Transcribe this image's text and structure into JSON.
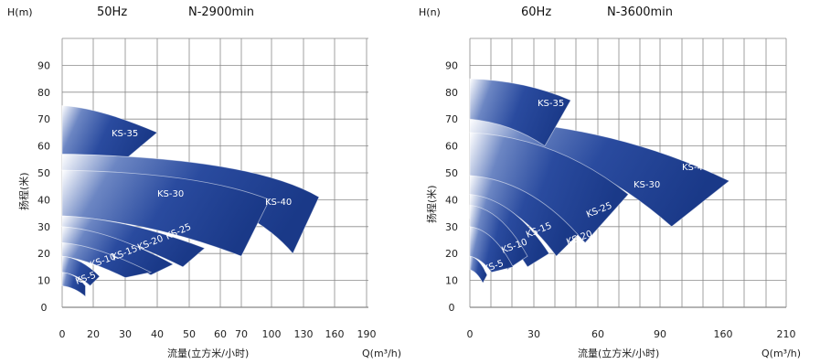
{
  "chart_data": [
    {
      "type": "area",
      "y_unit_label": "H(m)",
      "frequency": "50Hz",
      "speed": "N-2900min",
      "ylabel": "扬程(米)",
      "xlabel": "流量(立方米/小时)",
      "x_unit_label": "Q(m³/h)",
      "ylim": [
        0,
        100
      ],
      "y_ticks": [
        0,
        10,
        20,
        30,
        40,
        50,
        60,
        70,
        80,
        90
      ],
      "x_tick_labels": [
        "0",
        "20",
        "30",
        "40",
        "50",
        "60",
        "70",
        "100",
        "130",
        "160",
        "190"
      ],
      "grid": true,
      "series": [
        {
          "name": "KS-5",
          "color": "#1d3f95",
          "top": [
            [
              0,
              13
            ],
            [
              15,
              8
            ]
          ],
          "bottom": [
            [
              0,
              8
            ],
            [
              15,
              4
            ]
          ]
        },
        {
          "name": "KS-10",
          "color": "#1d3f95",
          "top": [
            [
              0,
              19
            ],
            [
              22,
              11.5
            ]
          ],
          "bottom": [
            [
              0,
              13
            ],
            [
              18,
              8
            ]
          ]
        },
        {
          "name": "KS-15",
          "color": "#1d3f95",
          "top": [
            [
              0,
              24
            ],
            [
              38,
              13
            ]
          ],
          "bottom": [
            [
              0,
              19
            ],
            [
              30,
              11
            ]
          ]
        },
        {
          "name": "KS-20",
          "color": "#1d3f95",
          "top": [
            [
              0,
              30
            ],
            [
              45,
              16
            ]
          ],
          "bottom": [
            [
              0,
              24
            ],
            [
              38,
              12
            ]
          ]
        },
        {
          "name": "KS-25",
          "color": "#1d3f95",
          "top": [
            [
              0,
              34
            ],
            [
              55,
              22
            ]
          ],
          "bottom": [
            [
              0,
              30
            ],
            [
              48,
              15
            ]
          ]
        },
        {
          "name": "KS-30",
          "color": "#1d3f95",
          "top": [
            [
              0,
              51
            ],
            [
              98,
              40
            ]
          ],
          "bottom": [
            [
              0,
              34
            ],
            [
              70,
              19
            ]
          ]
        },
        {
          "name": "KS-40",
          "color": "#1d3f95",
          "top": [
            [
              0,
              57
            ],
            [
              145,
              41
            ]
          ],
          "bottom": [
            [
              0,
              51
            ],
            [
              120,
              20
            ]
          ]
        },
        {
          "name": "KS-35",
          "color": "#1d3f95",
          "top": [
            [
              0,
              75
            ],
            [
              40,
              65
            ]
          ],
          "bottom": [
            [
              0,
              57
            ],
            [
              31,
              56
            ]
          ]
        }
      ]
    },
    {
      "type": "area",
      "y_unit_label": "H(n)",
      "frequency": "60Hz",
      "speed": "N-3600min",
      "ylabel": "扬程(米)",
      "xlabel": "流量(立方米/小时)",
      "x_unit_label": "Q(m³/h)",
      "ylim": [
        0,
        100
      ],
      "y_ticks": [
        0,
        10,
        20,
        30,
        40,
        50,
        60,
        70,
        80,
        90
      ],
      "x_tick_labels": [
        "0",
        "30",
        "60",
        "90",
        "160",
        "210"
      ],
      "grid": true,
      "series": [
        {
          "name": "KS-5",
          "color": "#1d3f95",
          "top": [
            [
              0,
              19
            ],
            [
              12,
              12
            ]
          ],
          "bottom": [
            [
              0,
              14
            ],
            [
              9,
              9
            ]
          ]
        },
        {
          "name": "KS-10",
          "color": "#1d3f95",
          "top": [
            [
              0,
              30
            ],
            [
              30,
              15
            ]
          ],
          "bottom": [
            [
              0,
              19
            ],
            [
              15,
              13
            ]
          ]
        },
        {
          "name": "KS-15",
          "color": "#1d3f95",
          "top": [
            [
              0,
              38
            ],
            [
              40,
              19
            ]
          ],
          "bottom": [
            [
              0,
              30
            ],
            [
              26,
              14
            ]
          ]
        },
        {
          "name": "KS-20",
          "color": "#1d3f95",
          "top": [
            [
              0,
              42
            ],
            [
              55,
              20
            ]
          ],
          "bottom": [
            [
              0,
              33
            ],
            [
              40,
              15
            ]
          ]
        },
        {
          "name": "KS-25",
          "color": "#1d3f95",
          "top": [
            [
              0,
              49
            ],
            [
              75,
              27
            ]
          ],
          "bottom": [
            [
              0,
              42
            ],
            [
              60,
              19
            ]
          ]
        },
        {
          "name": "KS-30",
          "color": "#1d3f95",
          "top": [
            [
              0,
              65
            ],
            [
              110,
              42
            ]
          ],
          "bottom": [
            [
              0,
              49
            ],
            [
              80,
              24
            ]
          ]
        },
        {
          "name": "KS-40",
          "color": "#1d3f95",
          "top": [
            [
              0,
              70
            ],
            [
              180,
              47
            ]
          ],
          "bottom": [
            [
              0,
              65
            ],
            [
              140,
              30
            ]
          ]
        },
        {
          "name": "KS-35",
          "color": "#1d3f95",
          "top": [
            [
              0,
              85
            ],
            [
              70,
              77
            ]
          ],
          "bottom": [
            [
              0,
              70
            ],
            [
              52,
              60
            ]
          ]
        }
      ]
    }
  ]
}
